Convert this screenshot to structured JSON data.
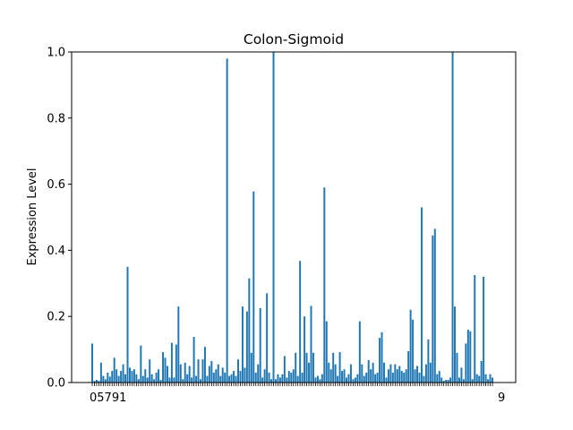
{
  "chart_data": {
    "type": "bar",
    "title": "Colon-Sigmoid",
    "xlabel": "",
    "ylabel": "Expression Level",
    "ylim": [
      0,
      1.0
    ],
    "yticks": [
      "0.0",
      "0.2",
      "0.4",
      "0.6",
      "0.8",
      "1.0"
    ],
    "xtick_text_visible": "05791",
    "xtick_text_end": "9",
    "grid": false,
    "legend": "none",
    "bar_color": "#1f77b4",
    "values": [
      0.118,
      0.005,
      0.008,
      0.005,
      0.06,
      0.02,
      0.01,
      0.03,
      0.018,
      0.035,
      0.075,
      0.04,
      0.02,
      0.035,
      0.055,
      0.025,
      0.35,
      0.045,
      0.035,
      0.04,
      0.025,
      0.01,
      0.112,
      0.02,
      0.04,
      0.015,
      0.07,
      0.025,
      0.01,
      0.03,
      0.04,
      0.008,
      0.092,
      0.075,
      0.05,
      0.015,
      0.12,
      0.015,
      0.115,
      0.23,
      0.055,
      0.01,
      0.06,
      0.025,
      0.05,
      0.015,
      0.138,
      0.02,
      0.07,
      0.01,
      0.07,
      0.108,
      0.02,
      0.05,
      0.065,
      0.03,
      0.04,
      0.055,
      0.02,
      0.045,
      0.03,
      0.98,
      0.02,
      0.025,
      0.035,
      0.02,
      0.07,
      0.035,
      0.23,
      0.045,
      0.215,
      0.315,
      0.09,
      0.578,
      0.03,
      0.055,
      0.225,
      0.015,
      0.04,
      0.27,
      0.03,
      0.01,
      1.0,
      0.01,
      0.025,
      0.015,
      0.025,
      0.08,
      0.015,
      0.035,
      0.03,
      0.04,
      0.09,
      0.02,
      0.368,
      0.03,
      0.2,
      0.09,
      0.06,
      0.232,
      0.09,
      0.015,
      0.02,
      0.01,
      0.025,
      0.59,
      0.185,
      0.06,
      0.04,
      0.09,
      0.055,
      0.02,
      0.092,
      0.035,
      0.04,
      0.015,
      0.025,
      0.055,
      0.01,
      0.015,
      0.025,
      0.185,
      0.055,
      0.02,
      0.03,
      0.068,
      0.04,
      0.06,
      0.025,
      0.03,
      0.135,
      0.152,
      0.06,
      0.015,
      0.04,
      0.055,
      0.03,
      0.055,
      0.04,
      0.05,
      0.035,
      0.03,
      0.04,
      0.095,
      0.22,
      0.19,
      0.04,
      0.05,
      0.03,
      0.53,
      0.02,
      0.055,
      0.13,
      0.06,
      0.445,
      0.465,
      0.025,
      0.035,
      0.015,
      0.005,
      0.008,
      0.008,
      0.015,
      1.0,
      0.23,
      0.09,
      0.015,
      0.045,
      0.01,
      0.118,
      0.16,
      0.155,
      0.01,
      0.325,
      0.025,
      0.02,
      0.065,
      0.32,
      0.025,
      0.01,
      0.025,
      0.015
    ]
  }
}
